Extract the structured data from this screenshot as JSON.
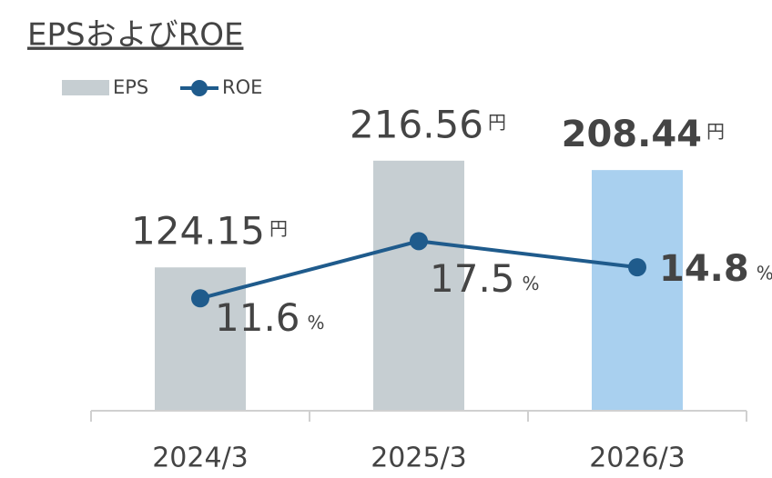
{
  "chart_data": {
    "type": "bar_line",
    "title": "EPSおよびROE",
    "categories": [
      "2024/3",
      "2025/3",
      "2026/3"
    ],
    "series": [
      {
        "name": "EPS",
        "type": "bar",
        "colors": [
          "#c6ced2",
          "#c6ced2",
          "#a9d0ef"
        ],
        "color": "#c6ced2",
        "values": [
          124.15,
          216.56,
          208.44
        ],
        "unit": "円"
      },
      {
        "name": "ROE",
        "type": "line",
        "axis": "y2",
        "color": "#1f5b8c",
        "values": [
          11.6,
          17.5,
          14.8
        ],
        "unit": "%"
      }
    ],
    "ylim": [
      0,
      277
    ],
    "y2lim": [
      0,
      33
    ],
    "highlight": 2,
    "legend": "top-left"
  }
}
